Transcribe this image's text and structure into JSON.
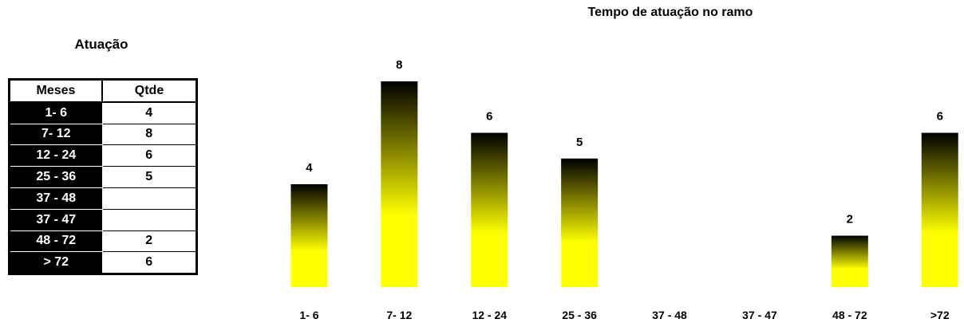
{
  "table": {
    "title": "Atuação",
    "header": [
      "Meses",
      "Qtde"
    ],
    "rows": [
      [
        "1- 6",
        4
      ],
      [
        "7- 12",
        8
      ],
      [
        "12 - 24",
        6
      ],
      [
        "25 - 36",
        5
      ],
      [
        "37 - 48",
        null
      ],
      [
        "37 - 47",
        null
      ],
      [
        "48 - 72",
        2
      ],
      [
        "> 72",
        6
      ]
    ]
  },
  "chart_data": {
    "type": "bar",
    "title": "Tempo de atuação  no ramo",
    "categories": [
      "1- 6",
      "7- 12",
      "12 - 24",
      "25 - 36",
      "37 - 48",
      "37 - 47",
      "48 - 72",
      ">72"
    ],
    "values": [
      4,
      8,
      6,
      5,
      null,
      null,
      2,
      6
    ],
    "gradient": [
      "#000000",
      "#ffff00"
    ]
  }
}
